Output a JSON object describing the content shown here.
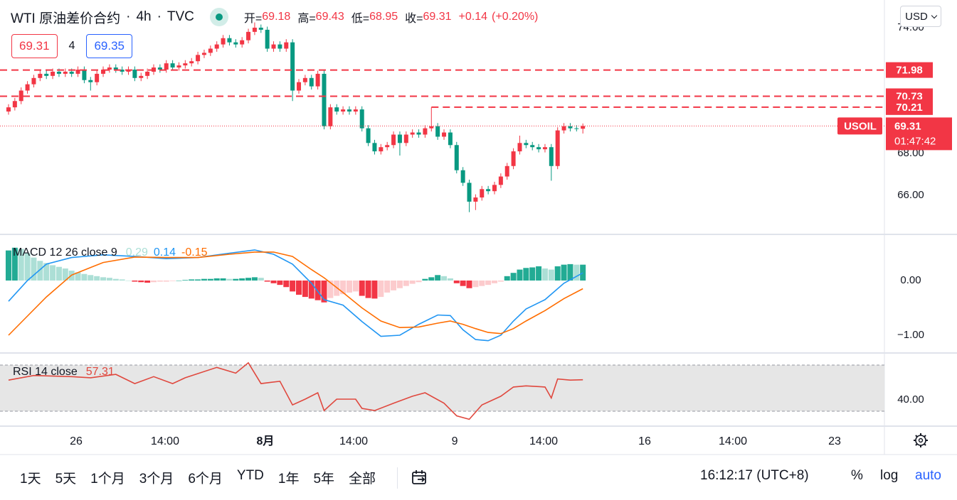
{
  "header": {
    "symbol": "WTI 原油差价合约",
    "separator": "·",
    "interval": "4h",
    "source": "TVC",
    "ohlc_labels": [
      "开=",
      "高=",
      "低=",
      "收="
    ],
    "change": {
      "value": 0.14,
      "label": "+0.14"
    },
    "change_pct": {
      "value": 0.2,
      "label": "(+0.20%)"
    },
    "spread": 4,
    "ask": 69.35,
    "currency": "USD"
  },
  "chart_data": {
    "type": "candlestick",
    "open": [
      70.0,
      70.2,
      70.5,
      71.0,
      71.3,
      71.6,
      71.8,
      71.7,
      71.9,
      71.8,
      71.9,
      71.8,
      72.0,
      71.5,
      71.4,
      71.8,
      72.0,
      72.1,
      72.0,
      71.9,
      72.0,
      71.6,
      71.7,
      71.9,
      72.1,
      72.0,
      72.3,
      72.1,
      72.2,
      72.3,
      72.4,
      72.7,
      72.8,
      73.0,
      73.2,
      73.5,
      73.3,
      73.2,
      73.4,
      73.8,
      74.0,
      73.9,
      73.0,
      73.2,
      73.0,
      73.3,
      71.0,
      71.4,
      71.6,
      71.2,
      71.8,
      69.3,
      70.2,
      70.0,
      70.1,
      70.0,
      70.1,
      69.2,
      68.5,
      68.1,
      68.3,
      68.4,
      68.9,
      68.5,
      68.9,
      69.0,
      68.9,
      69.2,
      69.3,
      68.8,
      69.0,
      68.4,
      67.2,
      66.6,
      65.7,
      65.9,
      66.3,
      66.2,
      66.5,
      66.9,
      67.4,
      68.1,
      68.5,
      68.4,
      68.3,
      68.2,
      68.3,
      67.4,
      69.1,
      69.3,
      69.2,
      69.18
    ],
    "high": [
      70.35,
      70.65,
      71.15,
      71.45,
      71.75,
      71.95,
      71.95,
      72.05,
      72.05,
      72.05,
      72.05,
      72.15,
      72.15,
      71.65,
      71.95,
      72.15,
      72.25,
      72.25,
      72.15,
      72.15,
      72.15,
      71.85,
      72.05,
      72.25,
      72.25,
      72.45,
      72.45,
      72.35,
      72.45,
      72.55,
      72.85,
      72.95,
      73.15,
      73.35,
      73.65,
      73.65,
      73.45,
      73.55,
      73.95,
      74.25,
      74.15,
      74.05,
      73.35,
      73.35,
      73.45,
      73.45,
      71.55,
      71.75,
      71.75,
      71.95,
      71.95,
      70.35,
      70.35,
      70.25,
      70.25,
      70.25,
      70.25,
      69.35,
      68.65,
      68.45,
      68.55,
      69.05,
      69.05,
      69.05,
      69.15,
      69.15,
      69.35,
      70.2,
      69.45,
      69.15,
      69.15,
      68.55,
      67.35,
      66.75,
      66.05,
      66.45,
      66.45,
      66.65,
      67.05,
      67.55,
      68.25,
      68.85,
      68.65,
      68.55,
      68.45,
      68.45,
      68.45,
      69.25,
      69.45,
      69.45,
      69.35,
      69.43
    ],
    "low": [
      69.85,
      70.05,
      70.35,
      70.85,
      71.15,
      71.45,
      71.55,
      71.55,
      71.65,
      71.65,
      71.65,
      71.65,
      71.35,
      71.0,
      71.25,
      71.65,
      71.85,
      71.85,
      71.75,
      71.75,
      71.45,
      71.45,
      71.55,
      71.75,
      71.85,
      71.85,
      71.95,
      71.95,
      72.05,
      72.15,
      72.25,
      72.55,
      72.65,
      72.85,
      73.05,
      73.15,
      73.05,
      73.05,
      73.25,
      73.65,
      73.75,
      72.85,
      72.85,
      72.85,
      72.85,
      70.5,
      70.85,
      71.25,
      71.05,
      71.05,
      69.15,
      69.15,
      69.85,
      69.85,
      69.85,
      69.85,
      69.05,
      68.35,
      67.95,
      67.95,
      68.15,
      68.25,
      67.9,
      68.35,
      68.75,
      68.75,
      68.75,
      69.05,
      68.65,
      68.65,
      68.25,
      67.05,
      66.45,
      65.2,
      65.3,
      65.75,
      66.05,
      66.05,
      66.35,
      66.75,
      67.25,
      67.95,
      68.25,
      68.15,
      68.05,
      68.05,
      66.7,
      67.25,
      68.95,
      69.05,
      69.05,
      68.95
    ],
    "close": [
      70.2,
      70.5,
      71.0,
      71.3,
      71.6,
      71.8,
      71.7,
      71.9,
      71.8,
      71.9,
      71.8,
      72.0,
      71.5,
      71.4,
      71.8,
      72.0,
      72.1,
      72.0,
      71.9,
      72.0,
      71.6,
      71.7,
      71.9,
      72.1,
      72.0,
      72.3,
      72.1,
      72.2,
      72.3,
      72.4,
      72.7,
      72.8,
      73.0,
      73.2,
      73.5,
      73.3,
      73.2,
      73.4,
      73.8,
      74.0,
      73.9,
      73.0,
      73.2,
      73.0,
      73.3,
      71.0,
      71.4,
      71.6,
      71.2,
      71.8,
      69.3,
      70.2,
      70.0,
      70.1,
      70.0,
      70.1,
      69.2,
      68.5,
      68.1,
      68.3,
      68.4,
      68.9,
      68.5,
      68.9,
      69.0,
      68.9,
      69.2,
      69.3,
      68.8,
      69.0,
      68.4,
      67.2,
      66.6,
      65.7,
      65.9,
      66.3,
      66.2,
      66.5,
      66.9,
      67.4,
      68.1,
      68.5,
      68.4,
      68.3,
      68.2,
      68.3,
      67.4,
      69.1,
      69.3,
      69.2,
      69.18,
      69.31
    ],
    "up_color": "#f23645",
    "down_color": "#089981",
    "xlim": [
      -1.35,
      138.78
    ],
    "ylim": [
      64.14,
      75.32
    ],
    "yticks": [
      {
        "value": 66,
        "label": "66.00"
      },
      {
        "value": 68,
        "label": "68.00"
      },
      {
        "value": 74,
        "label": "74.00"
      }
    ],
    "xticks": [
      {
        "value": 10.71,
        "label": "26"
      },
      {
        "value": 24.8,
        "label": "14:00"
      },
      {
        "value": 40.7,
        "label": "8月",
        "bold": true
      },
      {
        "value": 54.68,
        "label": "14:00"
      },
      {
        "value": 70.69,
        "label": "9"
      },
      {
        "value": 84.78,
        "label": "14:00"
      },
      {
        "value": 100.79,
        "label": "16"
      },
      {
        "value": 114.77,
        "label": "14:00"
      },
      {
        "value": 130.89,
        "label": "23"
      }
    ],
    "price_lines": [
      {
        "value": 71.98,
        "from": -1.35
      },
      {
        "value": 70.73,
        "from": -1.35
      },
      {
        "value": 70.21,
        "from": 67
      }
    ],
    "price_line_color": "#f23645",
    "last_price": {
      "symbol": "USOIL",
      "countdown": "01:47:42"
    }
  },
  "macd": {
    "type": "macd",
    "title": "MACD 12 26 close 9",
    "histogram": [
      0.55,
      0.6,
      0.58,
      0.5,
      0.42,
      0.36,
      0.32,
      0.28,
      0.25,
      0.22,
      0.18,
      0.15,
      0.12,
      0.1,
      0.08,
      0.06,
      0.05,
      0.03,
      0.02,
      0.0,
      -0.02,
      -0.03,
      -0.04,
      -0.03,
      -0.02,
      -0.02,
      -0.01,
      0.0,
      0.01,
      0.02,
      0.02,
      0.03,
      0.03,
      0.04,
      0.04,
      0.03,
      0.03,
      0.04,
      0.05,
      0.06,
      0.05,
      -0.02,
      -0.05,
      -0.08,
      -0.12,
      -0.2,
      -0.26,
      -0.3,
      -0.33,
      -0.36,
      -0.4,
      -0.32,
      -0.28,
      -0.25,
      -0.22,
      -0.2,
      -0.28,
      -0.32,
      -0.33,
      -0.3,
      -0.22,
      -0.18,
      -0.14,
      -0.1,
      -0.06,
      -0.03,
      0.03,
      0.06,
      0.1,
      0.08,
      0.04,
      -0.05,
      -0.1,
      -0.14,
      -0.12,
      -0.1,
      -0.08,
      -0.05,
      -0.02,
      0.08,
      0.14,
      0.2,
      0.23,
      0.24,
      0.26,
      0.22,
      0.2,
      0.26,
      0.29,
      0.3,
      0.29,
      0.29
    ],
    "histogram_colors": [
      "#22ab94",
      "#acdfd6",
      "#f23645",
      "#fccbcd"
    ],
    "macd": {
      "x": [
        0,
        3,
        6,
        10,
        15,
        20,
        25,
        30,
        35,
        39,
        42,
        45,
        48,
        50,
        53,
        56,
        59,
        62,
        65,
        68,
        70,
        72,
        74,
        76,
        78,
        80,
        82,
        85,
        88,
        91
      ],
      "values": [
        -0.38,
        0.0,
        0.3,
        0.42,
        0.47,
        0.44,
        0.4,
        0.42,
        0.5,
        0.56,
        0.48,
        0.3,
        -0.05,
        -0.35,
        -0.45,
        -0.75,
        -1.02,
        -1.0,
        -0.8,
        -0.63,
        -0.64,
        -0.9,
        -1.08,
        -1.1,
        -1.0,
        -0.74,
        -0.52,
        -0.35,
        -0.05,
        0.14
      ],
      "color": "#2196f3"
    },
    "signal": {
      "x": [
        0,
        3,
        6,
        10,
        15,
        20,
        25,
        30,
        35,
        39,
        42,
        45,
        48,
        50,
        53,
        56,
        59,
        62,
        65,
        68,
        70,
        72,
        74,
        76,
        78,
        80,
        82,
        85,
        88,
        91
      ],
      "values": [
        -1.0,
        -0.65,
        -0.3,
        0.1,
        0.33,
        0.43,
        0.42,
        0.42,
        0.48,
        0.52,
        0.52,
        0.44,
        0.2,
        0.05,
        -0.22,
        -0.5,
        -0.74,
        -0.86,
        -0.85,
        -0.78,
        -0.74,
        -0.8,
        -0.88,
        -0.95,
        -0.97,
        -0.88,
        -0.74,
        -0.55,
        -0.33,
        -0.15
      ],
      "color": "#ff6d00"
    },
    "ylim": [
      -1.325,
      0.844
    ],
    "yticks": [
      {
        "value": 0,
        "label": "0.00"
      },
      {
        "value": -1,
        "label": "−1.00"
      }
    ]
  },
  "rsi": {
    "type": "line",
    "title": "RSI 14 close",
    "x": [
      0,
      4,
      10,
      13,
      17,
      20,
      23,
      26,
      28,
      33,
      36,
      38,
      40,
      43,
      45,
      47,
      49,
      50,
      52,
      55,
      56,
      58,
      61,
      64,
      66,
      69,
      71,
      73,
      75,
      78,
      80,
      82,
      85,
      86,
      87,
      89,
      91
    ],
    "values": [
      57,
      61,
      60,
      59,
      62,
      54,
      60,
      54,
      59,
      68,
      63,
      72,
      54,
      56,
      35.5,
      40.5,
      46,
      30.6,
      40.5,
      40.5,
      32.5,
      30.6,
      37,
      43,
      46,
      37,
      26,
      23,
      35.5,
      43,
      51,
      52,
      51,
      41.5,
      58,
      57,
      57.31
    ],
    "color": "#e0483e",
    "band": [
      30,
      70
    ],
    "band_color": "#e6e6e6",
    "ylim": [
      17.1,
      80.5
    ],
    "yticks": [
      {
        "value": 40,
        "label": "40.00"
      }
    ]
  },
  "range_buttons": [
    "1天",
    "5天",
    "1个月",
    "3个月",
    "6个月",
    "YTD",
    "1年",
    "5年",
    "全部"
  ],
  "clock": "16:12:17 (UTC+8)",
  "scale_buttons": [
    "%",
    "log",
    "auto"
  ]
}
